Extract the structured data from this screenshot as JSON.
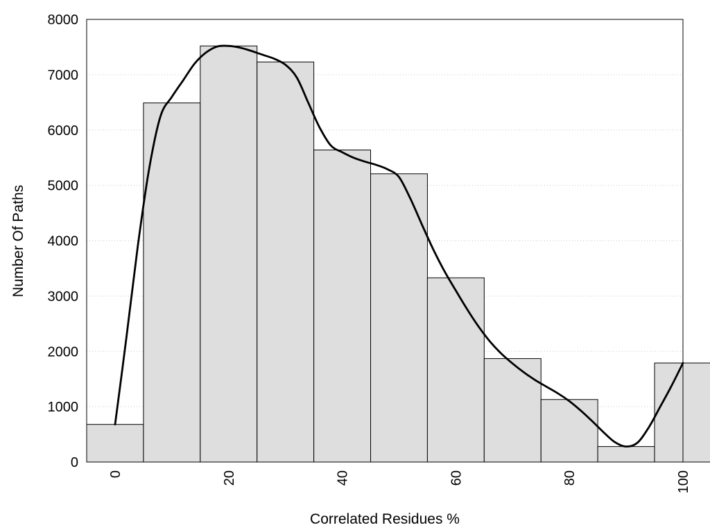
{
  "chart_data": {
    "type": "bar",
    "title": "",
    "xlabel": "Correlated Residues %",
    "ylabel": "Number Of Paths",
    "xlim": [
      -5,
      100
    ],
    "ylim": [
      0,
      8000
    ],
    "grid": true,
    "bin_width": 10,
    "bins": [
      {
        "center": 0,
        "value": 680
      },
      {
        "center": 10,
        "value": 6490
      },
      {
        "center": 20,
        "value": 7520
      },
      {
        "center": 30,
        "value": 7230
      },
      {
        "center": 40,
        "value": 5640
      },
      {
        "center": 50,
        "value": 5210
      },
      {
        "center": 60,
        "value": 3330
      },
      {
        "center": 70,
        "value": 1870
      },
      {
        "center": 80,
        "value": 1130
      },
      {
        "center": 90,
        "value": 280
      },
      {
        "center": 100,
        "value": 1790
      }
    ],
    "x_ticks": [
      "0",
      "20",
      "40",
      "60",
      "80",
      "100"
    ],
    "y_ticks": [
      "0",
      "1000",
      "2000",
      "3000",
      "4000",
      "5000",
      "6000",
      "7000",
      "8000"
    ],
    "density_curve": {
      "x": [
        0,
        2,
        4,
        6,
        8,
        10,
        12,
        14,
        16,
        18,
        20,
        22,
        24,
        26,
        28,
        30,
        32,
        34,
        36,
        38,
        40,
        42,
        44,
        46,
        48,
        50,
        52,
        54,
        56,
        58,
        60,
        62,
        64,
        66,
        68,
        70,
        72,
        74,
        76,
        78,
        80,
        82,
        84,
        86,
        88,
        90,
        92,
        94,
        96,
        98,
        100
      ],
      "y": [
        680,
        2250,
        3900,
        5300,
        6250,
        6600,
        6900,
        7200,
        7400,
        7510,
        7520,
        7490,
        7430,
        7360,
        7290,
        7180,
        6950,
        6500,
        6050,
        5720,
        5600,
        5500,
        5430,
        5370,
        5290,
        5150,
        4760,
        4300,
        3850,
        3450,
        3100,
        2760,
        2450,
        2180,
        1960,
        1780,
        1620,
        1480,
        1360,
        1240,
        1100,
        930,
        740,
        540,
        360,
        280,
        350,
        630,
        1000,
        1380,
        1790
      ]
    }
  }
}
